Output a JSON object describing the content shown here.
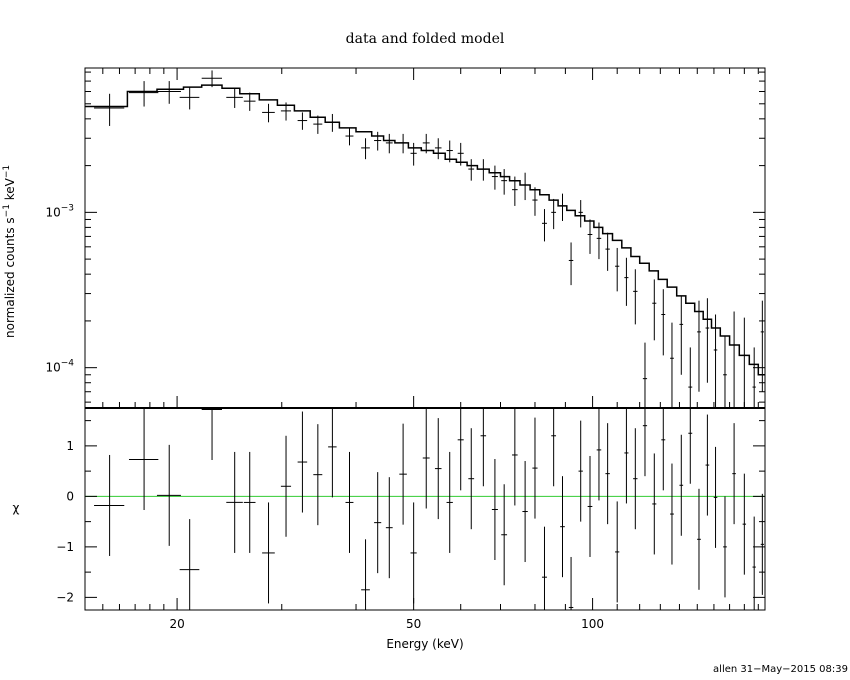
{
  "chart_data": [
    {
      "type": "scatter",
      "title": "data and folded model",
      "xlabel": "",
      "ylabel": "normalized counts s",
      "ylabel_sup1": "−1",
      "ylabel_mid": " keV",
      "ylabel_sup2": "−1",
      "xscale": "log",
      "yscale": "log",
      "xlim": [
        14,
        195
      ],
      "ylim": [
        5.5e-05,
        0.0085
      ],
      "ytick_labels": [
        {
          "value": 0.001,
          "base": "10",
          "exp": "−3"
        },
        {
          "value": 0.0001,
          "base": "10",
          "exp": "−4"
        }
      ],
      "series": [
        {
          "kind": "data with error bars",
          "points": [
            [
              15.4,
              0.0047,
              0.9,
              0.0011
            ],
            [
              17.6,
              0.0059,
              1.0,
              0.0011
            ],
            [
              19.4,
              0.006,
              0.9,
              0.001
            ],
            [
              21.0,
              0.0055,
              0.8,
              0.0009
            ],
            [
              22.9,
              0.0073,
              0.9,
              0.0009
            ],
            [
              25.0,
              0.0055,
              0.8,
              0.0008
            ],
            [
              26.5,
              0.0052,
              0.6,
              0.0007
            ],
            [
              28.5,
              0.0044,
              0.7,
              0.0006
            ],
            [
              30.5,
              0.0045,
              0.6,
              0.0006
            ],
            [
              32.5,
              0.0039,
              0.6,
              0.0005
            ],
            [
              34.5,
              0.0037,
              0.6,
              0.0005
            ],
            [
              36.5,
              0.0038,
              0.6,
              0.0005
            ],
            [
              39.0,
              0.0031,
              0.6,
              0.0004
            ],
            [
              41.5,
              0.0026,
              0.7,
              0.0004
            ],
            [
              43.5,
              0.0029,
              0.6,
              0.0004
            ],
            [
              45.5,
              0.0028,
              0.6,
              0.0004
            ],
            [
              48.0,
              0.0028,
              0.7,
              0.0004
            ],
            [
              50.0,
              0.0024,
              0.6,
              0.0004
            ],
            [
              52.5,
              0.0028,
              0.7,
              0.0004
            ],
            [
              55.0,
              0.0026,
              0.7,
              0.0004
            ],
            [
              57.5,
              0.0025,
              0.7,
              0.0004
            ],
            [
              60.0,
              0.0024,
              0.7,
              0.0004
            ],
            [
              62.5,
              0.0019,
              0.7,
              0.0003
            ],
            [
              65.5,
              0.0019,
              0.7,
              0.0003
            ],
            [
              68.5,
              0.0017,
              0.8,
              0.0003
            ],
            [
              71.0,
              0.0016,
              0.8,
              0.0003
            ],
            [
              74.0,
              0.0014,
              0.8,
              0.0003
            ],
            [
              77.0,
              0.0015,
              0.8,
              0.0003
            ],
            [
              80.0,
              0.0012,
              0.8,
              0.00025
            ],
            [
              83.0,
              0.00085,
              0.8,
              0.0002
            ],
            [
              86.0,
              0.001,
              0.8,
              0.00022
            ],
            [
              89.0,
              0.0011,
              0.8,
              0.00022
            ],
            [
              92.0,
              0.00049,
              0.8,
              0.00015
            ],
            [
              95.5,
              0.001,
              0.8,
              0.0002
            ],
            [
              99.0,
              0.00072,
              0.9,
              0.00018
            ],
            [
              102.5,
              0.00068,
              0.9,
              0.00018
            ],
            [
              106.0,
              0.00058,
              0.9,
              0.00016
            ],
            [
              110.0,
              0.00045,
              0.9,
              0.00014
            ],
            [
              114.0,
              0.00038,
              0.9,
              0.00013
            ],
            [
              118.0,
              0.00031,
              1.0,
              0.00012
            ],
            [
              122.5,
              8.5e-05,
              1.0,
              6e-05
            ],
            [
              127.0,
              0.00026,
              1.0,
              0.00011
            ],
            [
              131.5,
              0.00022,
              1.0,
              0.0001
            ],
            [
              136.0,
              0.000115,
              1.0,
              8e-05
            ],
            [
              141.0,
              0.00019,
              1.0,
              0.0001
            ],
            [
              146.0,
              7.5e-05,
              1.1,
              6e-05
            ],
            [
              151.0,
              0.00017,
              1.1,
              0.0001
            ],
            [
              156.0,
              0.00018,
              1.1,
              0.0001
            ],
            [
              161.0,
              0.00013,
              1.1,
              9e-05
            ],
            [
              167.0,
              9e-05,
              1.2,
              7e-05
            ],
            [
              173.0,
              0.00014,
              1.2,
              9e-05
            ],
            [
              180.0,
              0.00012,
              1.2,
              9e-05
            ],
            [
              187.0,
              7.5e-05,
              1.2,
              6e-05
            ],
            [
              193.0,
              0.00017,
              1.2,
              0.0001
            ]
          ]
        },
        {
          "kind": "folded model histogram",
          "steps": [
            [
              14.0,
              0.0048
            ],
            [
              16.5,
              0.006
            ],
            [
              18.5,
              0.0062
            ],
            [
              20.5,
              0.0064
            ],
            [
              22.0,
              0.0066
            ],
            [
              23.8,
              0.0063
            ],
            [
              25.5,
              0.0058
            ],
            [
              27.5,
              0.0053
            ],
            [
              29.5,
              0.0049
            ],
            [
              31.5,
              0.0045
            ],
            [
              33.5,
              0.0041
            ],
            [
              35.5,
              0.0038
            ],
            [
              37.5,
              0.0035
            ],
            [
              40.0,
              0.0033
            ],
            [
              42.5,
              0.0031
            ],
            [
              44.5,
              0.0029
            ],
            [
              46.5,
              0.0028
            ],
            [
              49.0,
              0.0026
            ],
            [
              51.5,
              0.0025
            ],
            [
              54.0,
              0.0024
            ],
            [
              56.5,
              0.0022
            ],
            [
              59.0,
              0.0021
            ],
            [
              61.5,
              0.002
            ],
            [
              64.0,
              0.0019
            ],
            [
              67.0,
              0.0018
            ],
            [
              70.0,
              0.0017
            ],
            [
              72.5,
              0.0016
            ],
            [
              75.5,
              0.0015
            ],
            [
              78.5,
              0.0014
            ],
            [
              81.5,
              0.0013
            ],
            [
              84.5,
              0.0012
            ],
            [
              87.5,
              0.0011
            ],
            [
              90.5,
              0.00103
            ],
            [
              93.5,
              0.00095
            ],
            [
              97.0,
              0.00088
            ],
            [
              100.5,
              0.0008
            ],
            [
              104.0,
              0.00073
            ],
            [
              108.0,
              0.00066
            ],
            [
              112.0,
              0.00059
            ],
            [
              116.0,
              0.00052
            ],
            [
              120.0,
              0.00047
            ],
            [
              124.5,
              0.00042
            ],
            [
              129.0,
              0.00037
            ],
            [
              133.5,
              0.00033
            ],
            [
              138.5,
              0.00029
            ],
            [
              143.5,
              0.00026
            ],
            [
              148.5,
              0.00023
            ],
            [
              153.5,
              0.000205
            ],
            [
              158.5,
              0.00018
            ],
            [
              164.0,
              0.00016
            ],
            [
              170.0,
              0.00014
            ],
            [
              176.5,
              0.00012
            ],
            [
              183.5,
              0.000105
            ],
            [
              190.0,
              9e-05
            ],
            [
              195.0,
              9e-05
            ]
          ]
        }
      ]
    },
    {
      "type": "scatter",
      "xlabel": "Energy (keV)",
      "ylabel": "χ",
      "xscale": "log",
      "xlim": [
        14,
        195
      ],
      "ylim": [
        -2.25,
        1.75
      ],
      "xtick_labels": [
        "20",
        "50",
        "100"
      ],
      "xtick_values": [
        20,
        50,
        100
      ],
      "ytick_labels": [
        "1",
        "0",
        "−1",
        "−2"
      ],
      "ytick_values": [
        1,
        0,
        -1,
        -2
      ],
      "reference_line": {
        "y": 0,
        "color": "#33cc33"
      },
      "series": [
        {
          "kind": "residuals with error bars",
          "points": [
            [
              15.4,
              -0.18,
              0.9,
              1.0
            ],
            [
              17.6,
              0.73,
              1.0,
              1.0
            ],
            [
              19.4,
              0.02,
              0.9,
              1.0
            ],
            [
              21.0,
              -1.45,
              0.8,
              1.0
            ],
            [
              22.9,
              1.72,
              0.9,
              1.0
            ],
            [
              25.0,
              -0.12,
              0.8,
              1.0
            ],
            [
              26.5,
              -0.12,
              0.6,
              1.0
            ],
            [
              28.5,
              -1.12,
              0.7,
              1.0
            ],
            [
              30.5,
              0.2,
              0.6,
              1.0
            ],
            [
              32.5,
              0.68,
              0.6,
              1.0
            ],
            [
              34.5,
              0.43,
              0.6,
              1.0
            ],
            [
              36.5,
              0.98,
              0.6,
              1.0
            ],
            [
              39.0,
              -0.12,
              0.6,
              1.0
            ],
            [
              41.5,
              -1.85,
              0.7,
              1.0
            ],
            [
              43.5,
              -0.52,
              0.6,
              1.0
            ],
            [
              45.5,
              -0.62,
              0.6,
              1.0
            ],
            [
              48.0,
              0.44,
              0.7,
              1.0
            ],
            [
              50.0,
              -1.12,
              0.6,
              1.0
            ],
            [
              52.5,
              0.76,
              0.7,
              1.0
            ],
            [
              55.0,
              0.55,
              0.7,
              1.0
            ],
            [
              57.5,
              -0.12,
              0.7,
              1.0
            ],
            [
              60.0,
              1.12,
              0.7,
              1.0
            ],
            [
              62.5,
              0.35,
              0.7,
              1.0
            ],
            [
              65.5,
              1.2,
              0.7,
              1.0
            ],
            [
              68.5,
              -0.26,
              0.8,
              1.0
            ],
            [
              71.0,
              -0.76,
              0.8,
              1.0
            ],
            [
              74.0,
              0.82,
              0.8,
              1.0
            ],
            [
              77.0,
              -0.3,
              0.8,
              1.0
            ],
            [
              80.0,
              0.56,
              0.8,
              1.0
            ],
            [
              83.0,
              -1.6,
              0.8,
              1.0
            ],
            [
              86.0,
              1.2,
              0.8,
              1.0
            ],
            [
              89.0,
              -0.6,
              0.8,
              1.0
            ],
            [
              92.0,
              -2.2,
              0.8,
              1.0
            ],
            [
              95.5,
              0.5,
              0.8,
              1.0
            ],
            [
              99.0,
              -0.2,
              0.9,
              1.0
            ],
            [
              102.5,
              0.92,
              0.9,
              1.0
            ],
            [
              106.0,
              0.45,
              0.9,
              1.0
            ],
            [
              110.0,
              -1.1,
              0.9,
              1.0
            ],
            [
              114.0,
              0.86,
              0.9,
              1.0
            ],
            [
              118.0,
              0.35,
              1.0,
              1.0
            ],
            [
              122.5,
              1.4,
              1.0,
              1.0
            ],
            [
              127.0,
              -0.15,
              1.0,
              1.0
            ],
            [
              131.5,
              1.12,
              1.0,
              1.0
            ],
            [
              136.0,
              -0.35,
              1.0,
              1.0
            ],
            [
              141.0,
              0.22,
              1.0,
              1.0
            ],
            [
              146.0,
              1.25,
              1.1,
              1.0
            ],
            [
              151.0,
              -0.85,
              1.1,
              1.0
            ],
            [
              156.0,
              0.62,
              1.1,
              1.0
            ],
            [
              161.0,
              -0.02,
              1.1,
              1.0
            ],
            [
              167.0,
              -1.0,
              1.2,
              1.0
            ],
            [
              173.0,
              0.45,
              1.2,
              1.0
            ],
            [
              180.0,
              -0.55,
              1.2,
              1.0
            ],
            [
              187.0,
              -1.4,
              1.2,
              1.0
            ],
            [
              193.0,
              -0.95,
              1.2,
              1.0
            ]
          ]
        }
      ]
    }
  ],
  "footer": {
    "text": "allen 31−May−2015 08:39"
  },
  "colors": {
    "axes": "#000000",
    "zero_line": "#33cc33"
  }
}
